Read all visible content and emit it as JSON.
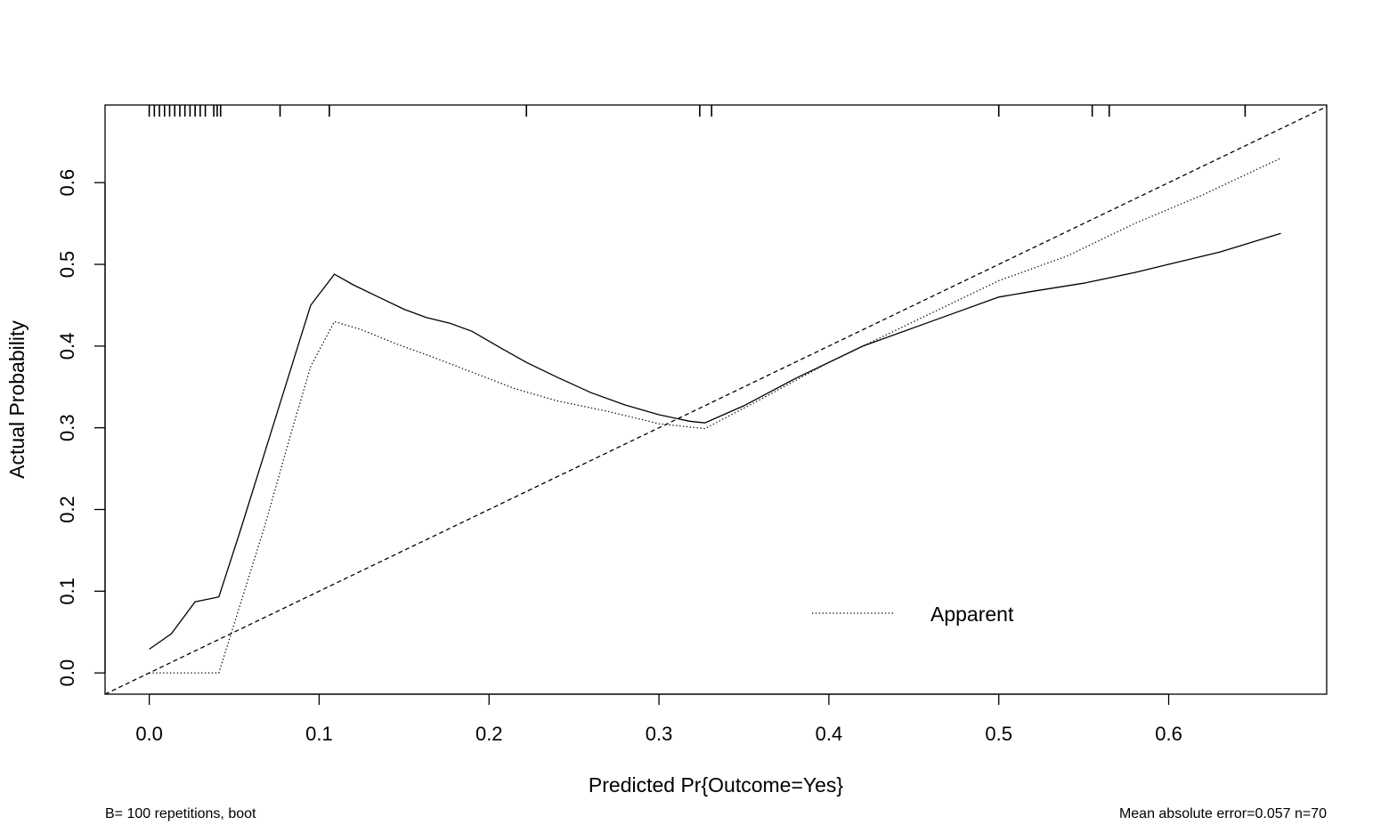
{
  "chart_data": {
    "type": "line",
    "title": "",
    "xlabel": "Predicted Pr{Outcome=Yes}",
    "ylabel": "Actual Probability",
    "xlim": [
      -0.026,
      0.693
    ],
    "ylim": [
      -0.026,
      0.695
    ],
    "x_ticks": [
      0.0,
      0.1,
      0.2,
      0.3,
      0.4,
      0.5,
      0.6
    ],
    "x_tick_labels": [
      "0.0",
      "0.1",
      "0.2",
      "0.3",
      "0.4",
      "0.5",
      "0.6"
    ],
    "y_ticks": [
      0.0,
      0.1,
      0.2,
      0.3,
      0.4,
      0.5,
      0.6
    ],
    "y_tick_labels": [
      "0.0",
      "0.1",
      "0.2",
      "0.3",
      "0.4",
      "0.5",
      "0.6"
    ],
    "grid": false,
    "legend_position": "bottom-right",
    "series": [
      {
        "name": "",
        "style": "solid",
        "x": [
          0.0,
          0.013,
          0.027,
          0.041,
          0.053,
          0.068,
          0.083,
          0.095,
          0.109,
          0.12,
          0.135,
          0.15,
          0.163,
          0.177,
          0.19,
          0.205,
          0.222,
          0.24,
          0.26,
          0.28,
          0.3,
          0.318,
          0.327,
          0.35,
          0.38,
          0.42,
          0.46,
          0.5,
          0.52,
          0.55,
          0.58,
          0.6,
          0.63,
          0.666
        ],
        "y": [
          0.029,
          0.048,
          0.087,
          0.093,
          0.17,
          0.27,
          0.37,
          0.45,
          0.488,
          0.475,
          0.46,
          0.445,
          0.435,
          0.428,
          0.418,
          0.4,
          0.38,
          0.362,
          0.343,
          0.328,
          0.316,
          0.308,
          0.306,
          0.327,
          0.36,
          0.4,
          0.43,
          0.46,
          0.467,
          0.477,
          0.49,
          0.5,
          0.515,
          0.538
        ]
      },
      {
        "name": "Apparent",
        "style": "dotted",
        "x": [
          0.0,
          0.013,
          0.027,
          0.041,
          0.053,
          0.068,
          0.083,
          0.095,
          0.109,
          0.125,
          0.145,
          0.165,
          0.19,
          0.215,
          0.24,
          0.27,
          0.3,
          0.327,
          0.36,
          0.4,
          0.43,
          0.47,
          0.5,
          0.54,
          0.58,
          0.62,
          0.666
        ],
        "y": [
          0.0,
          0.0,
          0.0,
          0.0,
          0.08,
          0.18,
          0.29,
          0.375,
          0.43,
          0.42,
          0.403,
          0.388,
          0.368,
          0.348,
          0.333,
          0.32,
          0.305,
          0.299,
          0.335,
          0.38,
          0.41,
          0.45,
          0.48,
          0.51,
          0.55,
          0.585,
          0.63
        ]
      },
      {
        "name": "",
        "style": "dashed",
        "x": [
          -0.026,
          0.693
        ],
        "y": [
          -0.026,
          0.693
        ]
      }
    ],
    "rug_x": [
      0.0,
      0.003,
      0.006,
      0.009,
      0.012,
      0.015,
      0.018,
      0.021,
      0.024,
      0.027,
      0.03,
      0.033,
      0.038,
      0.042,
      0.04,
      0.077,
      0.106,
      0.222,
      0.324,
      0.331,
      0.5,
      0.555,
      0.565,
      0.645
    ],
    "legend": [
      {
        "label": "Apparent",
        "style": "dotted"
      }
    ],
    "footnote_left": "B= 100 repetitions, boot",
    "footnote_right": "Mean absolute error=0.057 n=70"
  }
}
